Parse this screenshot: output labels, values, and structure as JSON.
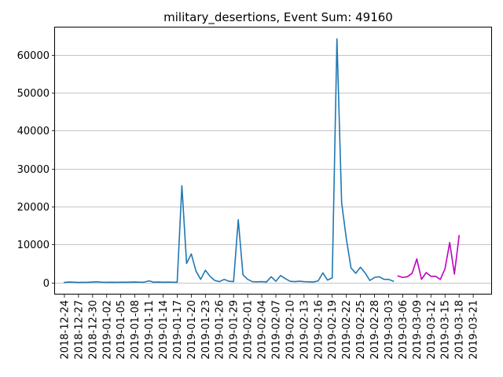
{
  "chart_data": {
    "type": "line",
    "title": "military_desertions, Event Sum: 49160",
    "xlabel": "",
    "ylabel": "",
    "ylim": [
      -3200,
      67200
    ],
    "yticks": [
      0,
      10000,
      20000,
      30000,
      40000,
      50000,
      60000
    ],
    "ytick_labels": [
      "0",
      "10000",
      "20000",
      "30000",
      "40000",
      "50000",
      "60000"
    ],
    "grid": "y",
    "x_start": "2018-12-24",
    "xlim": [
      "2018-12-22",
      "2019-03-25"
    ],
    "xtick_labels": [
      "2018-12-24",
      "2018-12-27",
      "2018-12-30",
      "2019-01-02",
      "2019-01-05",
      "2019-01-08",
      "2019-01-11",
      "2019-01-14",
      "2019-01-17",
      "2019-01-20",
      "2019-01-23",
      "2019-01-26",
      "2019-01-29",
      "2019-02-01",
      "2019-02-04",
      "2019-02-07",
      "2019-02-10",
      "2019-02-13",
      "2019-02-16",
      "2019-02-19",
      "2019-02-22",
      "2019-02-25",
      "2019-02-28",
      "2019-03-03",
      "2019-03-06",
      "2019-03-09",
      "2019-03-12",
      "2019-03-15",
      "2019-03-18",
      "2019-03-21"
    ],
    "series": [
      {
        "color": "#1f77b4",
        "start": "2018-12-24",
        "values": [
          0,
          100,
          50,
          0,
          20,
          30,
          100,
          150,
          40,
          30,
          50,
          30,
          60,
          50,
          80,
          100,
          60,
          80,
          400,
          50,
          100,
          40,
          80,
          60,
          50,
          25500,
          5000,
          7500,
          3000,
          800,
          3200,
          1600,
          500,
          200,
          800,
          300,
          200,
          16500,
          2000,
          800,
          200,
          150,
          200,
          100,
          1500,
          300,
          1800,
          1000,
          300,
          200,
          300,
          200,
          150,
          100,
          400,
          2500,
          600,
          1200,
          64200,
          21000,
          11500,
          3800,
          2400,
          4000,
          2500,
          500,
          1300,
          1500,
          800,
          800,
          300
        ]
      },
      {
        "color": "#bf00bf",
        "start": "2019-03-05",
        "values": [
          1700,
          1300,
          1500,
          2400,
          6200,
          800,
          2600,
          1600,
          1600,
          800,
          3600,
          10500,
          2200,
          12300
        ]
      }
    ]
  }
}
